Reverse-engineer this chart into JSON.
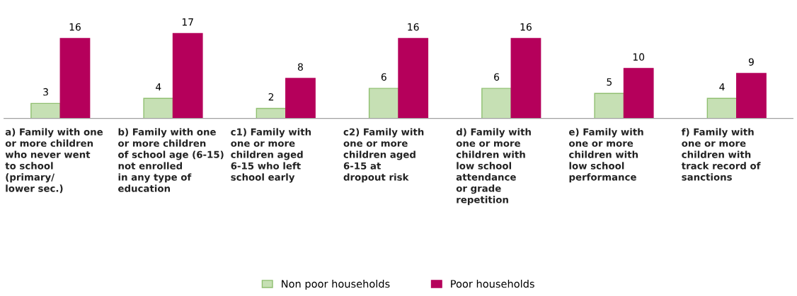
{
  "chart_data": {
    "type": "bar",
    "categories": [
      "a) Family with one\nor more children\nwho never went\nto school\n(primary/\nlower sec.)",
      "b) Family with one\nor more children\nof school age (6-15)\nnot enrolled\nin any type of\neducation",
      "c1) Family with\none or more\nchildren aged\n6-15 who left\nschool early",
      "c2) Family with\none or more\nchildren aged\n6-15 at\ndropout risk",
      "d) Family with\none or more\nchildren with\nlow school\nattendance\nor grade\nrepetition",
      "e) Family with\none or more\nchildren with\nlow school\nperformance",
      "f) Family with\none or more\nchildren with\ntrack record of\nsanctions"
    ],
    "series": [
      {
        "name": "Non poor households",
        "color": "#c6e0b4",
        "values": [
          3,
          4,
          2,
          6,
          6,
          5,
          4
        ]
      },
      {
        "name": "Poor households",
        "color": "#b5005b",
        "values": [
          16,
          17,
          8,
          16,
          16,
          10,
          9
        ]
      }
    ],
    "data_labels": true,
    "legend": "bottom",
    "tick_labels": "x"
  }
}
